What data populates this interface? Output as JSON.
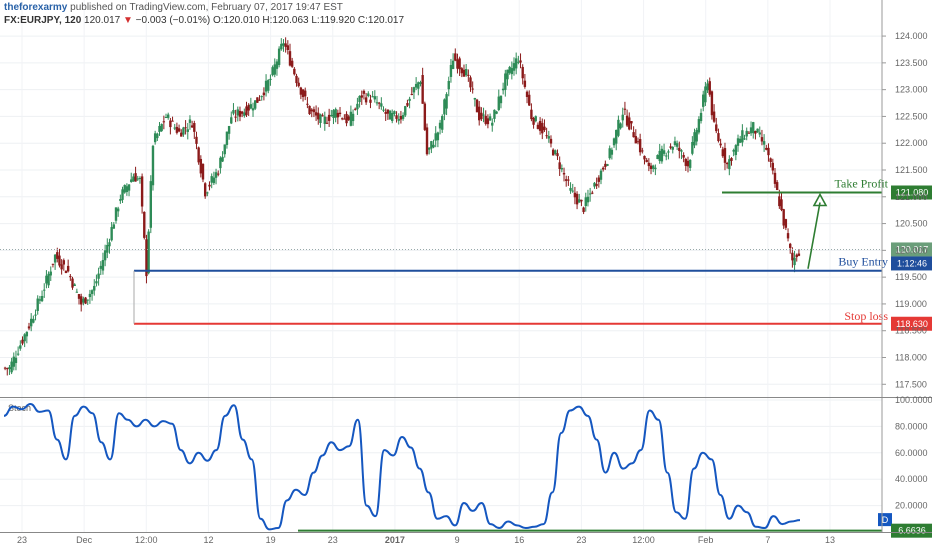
{
  "header": {
    "publisher": "theforexarmy",
    "published_text": "published on TradingView.com, February 07, 2017 19:47 EST"
  },
  "symbol_line": {
    "symbol": "FX:EURJPY, 120",
    "last": "120.017",
    "change": "−0.003 (−0.01%)",
    "ohlc": "O:120.010 H:120.063 L:119.920 C:120.017"
  },
  "colors": {
    "up_candle": "#2e8b57",
    "down_candle": "#8b1a1a",
    "support_line": "#1f4e9c",
    "stop_line": "#e53935",
    "target_line": "#2e7d32",
    "stoch_line": "#1557c0",
    "stoch_floor": "#2e7d32",
    "price_tag": "#6b9e7a",
    "d_badge": "#1557c0"
  },
  "chart_data": [
    {
      "type": "candlestick",
      "title": "",
      "ylim": [
        117.3,
        124.3
      ],
      "yticks": [
        124.0,
        123.5,
        123.0,
        122.5,
        122.0,
        121.5,
        121.0,
        120.5,
        120.0,
        119.5,
        119.0,
        118.5,
        118.0,
        117.5
      ],
      "ytick_labels": [
        "124.000",
        "123.500",
        "123.000",
        "122.500",
        "122.000",
        "121.500",
        "121.000",
        "120.500",
        "120.000",
        "119.500",
        "119.000",
        "118.500",
        "118.000",
        "117.500"
      ],
      "xticks": [
        "23",
        "Dec",
        "12:00",
        "12",
        "19",
        "23",
        "2017",
        "9",
        "16",
        "23",
        "12:00",
        "Feb",
        "7",
        "13"
      ],
      "approx_close_path": [
        [
          0,
          117.8
        ],
        [
          3,
          118.6
        ],
        [
          5,
          119.2
        ],
        [
          7,
          119.9
        ],
        [
          9,
          119.6
        ],
        [
          11,
          119.0
        ],
        [
          13,
          119.3
        ],
        [
          15,
          120.1
        ],
        [
          17,
          121.0
        ],
        [
          19,
          121.4
        ],
        [
          20,
          121.3
        ],
        [
          21,
          119.6
        ],
        [
          22,
          122.0
        ],
        [
          24,
          122.5
        ],
        [
          26,
          122.2
        ],
        [
          28,
          122.4
        ],
        [
          30,
          121.1
        ],
        [
          32,
          121.5
        ],
        [
          34,
          122.5
        ],
        [
          36,
          122.6
        ],
        [
          38,
          122.8
        ],
        [
          40,
          123.2
        ],
        [
          42,
          123.9
        ],
        [
          44,
          123.2
        ],
        [
          46,
          122.6
        ],
        [
          48,
          122.4
        ],
        [
          50,
          122.6
        ],
        [
          52,
          122.4
        ],
        [
          54,
          122.9
        ],
        [
          56,
          122.8
        ],
        [
          58,
          122.5
        ],
        [
          60,
          122.5
        ],
        [
          62,
          123.0
        ],
        [
          63,
          123.2
        ],
        [
          64,
          121.8
        ],
        [
          66,
          122.3
        ],
        [
          68,
          123.6
        ],
        [
          70,
          123.3
        ],
        [
          72,
          122.5
        ],
        [
          74,
          122.4
        ],
        [
          76,
          123.2
        ],
        [
          78,
          123.6
        ],
        [
          80,
          122.5
        ],
        [
          82,
          122.2
        ],
        [
          84,
          121.7
        ],
        [
          86,
          121.1
        ],
        [
          88,
          120.8
        ],
        [
          90,
          121.3
        ],
        [
          92,
          121.8
        ],
        [
          94,
          122.6
        ],
        [
          96,
          122.1
        ],
        [
          98,
          121.5
        ],
        [
          100,
          121.8
        ],
        [
          102,
          122.0
        ],
        [
          104,
          121.6
        ],
        [
          106,
          122.6
        ],
        [
          107,
          123.2
        ],
        [
          108,
          122.3
        ],
        [
          110,
          121.6
        ],
        [
          112,
          122.1
        ],
        [
          114,
          122.3
        ],
        [
          116,
          121.9
        ],
        [
          118,
          120.9
        ],
        [
          120,
          119.8
        ],
        [
          121,
          120.0
        ]
      ]
    },
    {
      "type": "line",
      "title": "Stoch",
      "ylim": [
        0,
        100
      ],
      "yticks": [
        100,
        80,
        60,
        40,
        20
      ],
      "ytick_labels": [
        "100.0000",
        "80.0000",
        "60.0000",
        "40.0000",
        "20.0000"
      ],
      "current_value": "6.6636",
      "badge": "D",
      "series": [
        {
          "values": [
            88,
            95,
            93,
            97,
            91,
            92,
            70,
            55,
            88,
            95,
            90,
            68,
            55,
            90,
            85,
            80,
            85,
            80,
            84,
            82,
            62,
            52,
            60,
            54,
            62,
            88,
            96,
            70,
            55,
            10,
            2,
            3,
            24,
            32,
            28,
            45,
            58,
            68,
            62,
            65,
            85,
            20,
            12,
            62,
            58,
            72,
            64,
            48,
            30,
            10,
            12,
            5,
            22,
            16,
            22,
            6,
            3,
            8,
            5,
            3,
            4,
            6,
            30,
            75,
            92,
            95,
            88,
            70,
            45,
            60,
            48,
            52,
            62,
            92,
            85,
            45,
            15,
            10,
            48,
            60,
            55,
            28,
            10,
            20,
            15,
            4,
            3,
            12,
            6,
            8,
            9
          ]
        }
      ]
    }
  ],
  "annotations": {
    "take_profit": {
      "label": "Take Profit",
      "price": 121.08,
      "tag": "121.080"
    },
    "buy_entry": {
      "label": "Buy Entry",
      "price": 119.62,
      "tag": "1:12:46"
    },
    "stop_loss": {
      "label": "Stop loss",
      "price": 118.63,
      "tag": "118.630"
    },
    "current_price": {
      "price": 120.017,
      "tag": "120.017"
    }
  }
}
